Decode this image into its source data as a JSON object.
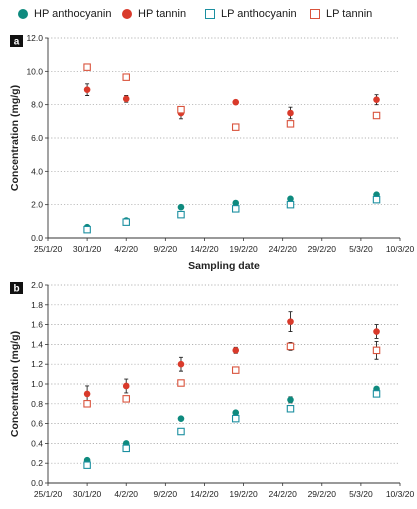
{
  "legend": [
    {
      "label": "HP anthocyanin",
      "color": "#0e8a7e",
      "shape": "circle-filled"
    },
    {
      "label": "HP tannin",
      "color": "#d93a2b",
      "shape": "circle-filled"
    },
    {
      "label": "LP anthocyanin",
      "color": "#1b8fa0",
      "shape": "square-open"
    },
    {
      "label": "LP tannin",
      "color": "#d9533c",
      "shape": "square-open"
    }
  ],
  "chart_data": [
    {
      "type": "scatter",
      "panel_label": "a",
      "ylabel": "Concentration (mg/g)",
      "xlabel": "Sampling date",
      "ylim": [
        0,
        12
      ],
      "yticks": [
        "0.0",
        "2.0",
        "4.0",
        "6.0",
        "8.0",
        "10.0",
        "12.0"
      ],
      "ytick_values": [
        0,
        2,
        4,
        6,
        8,
        10,
        12
      ],
      "xticks": [
        "25/1/20",
        "30/1/20",
        "4/2/20",
        "9/2/20",
        "14/2/20",
        "19/2/20",
        "24/2/20",
        "29/2/20",
        "5/3/20",
        "10/3/20"
      ],
      "grid": "horizontal dotted",
      "series": [
        {
          "name": "HP anthocyanin",
          "x": [
            "30/1/20",
            "4/2/20",
            "11/2/20",
            "18/2/20",
            "25/2/20",
            "7/3/20"
          ],
          "y": [
            0.65,
            1.05,
            1.85,
            2.1,
            2.35,
            2.6
          ],
          "err": [
            0.05,
            0.08,
            0.06,
            0.06,
            0.07,
            0.07
          ]
        },
        {
          "name": "HP tannin",
          "x": [
            "30/1/20",
            "4/2/20",
            "11/2/20",
            "18/2/20",
            "25/2/20",
            "7/3/20"
          ],
          "y": [
            8.9,
            8.35,
            7.5,
            8.15,
            7.5,
            8.3
          ],
          "err": [
            0.35,
            0.2,
            0.35,
            0.12,
            0.35,
            0.3
          ]
        },
        {
          "name": "LP anthocyanin",
          "x": [
            "30/1/20",
            "4/2/20",
            "11/2/20",
            "18/2/20",
            "25/2/20",
            "7/3/20"
          ],
          "y": [
            0.5,
            0.95,
            1.4,
            1.75,
            2.0,
            2.3
          ],
          "err": [
            0.05,
            0.06,
            0.06,
            0.06,
            0.06,
            0.06
          ]
        },
        {
          "name": "LP tannin",
          "x": [
            "30/1/20",
            "4/2/20",
            "11/2/20",
            "18/2/20",
            "25/2/20",
            "7/3/20"
          ],
          "y": [
            10.25,
            9.65,
            7.7,
            6.65,
            6.85,
            7.35
          ],
          "err": [
            0.1,
            0.1,
            0.15,
            0.1,
            0.15,
            0.1
          ]
        }
      ]
    },
    {
      "type": "scatter",
      "panel_label": "b",
      "ylabel": "Concentration (mg/g)",
      "xlabel": "",
      "ylim": [
        0,
        2
      ],
      "yticks": [
        "0.0",
        "0.2",
        "0.4",
        "0.6",
        "0.8",
        "1.0",
        "1.2",
        "1.4",
        "1.6",
        "1.8",
        "2.0"
      ],
      "ytick_values": [
        0,
        0.2,
        0.4,
        0.6,
        0.8,
        1.0,
        1.2,
        1.4,
        1.6,
        1.8,
        2.0
      ],
      "xticks": [
        "25/1/20",
        "30/1/20",
        "4/2/20",
        "9/2/20",
        "14/2/20",
        "19/2/20",
        "24/2/20",
        "29/2/20",
        "5/3/20",
        "10/3/20"
      ],
      "grid": "horizontal dotted",
      "series": [
        {
          "name": "HP anthocyanin",
          "x": [
            "30/1/20",
            "4/2/20",
            "11/2/20",
            "18/2/20",
            "25/2/20",
            "7/3/20"
          ],
          "y": [
            0.23,
            0.4,
            0.65,
            0.71,
            0.84,
            0.95
          ],
          "err": [
            0.01,
            0.01,
            0.01,
            0.02,
            0.03,
            0.02
          ]
        },
        {
          "name": "HP tannin",
          "x": [
            "30/1/20",
            "4/2/20",
            "11/2/20",
            "18/2/20",
            "25/2/20",
            "7/3/20"
          ],
          "y": [
            0.9,
            0.98,
            1.2,
            1.34,
            1.63,
            1.53
          ],
          "err": [
            0.08,
            0.07,
            0.07,
            0.03,
            0.1,
            0.07
          ]
        },
        {
          "name": "LP anthocyanin",
          "x": [
            "30/1/20",
            "4/2/20",
            "11/2/20",
            "18/2/20",
            "25/2/20",
            "7/3/20"
          ],
          "y": [
            0.18,
            0.35,
            0.52,
            0.65,
            0.75,
            0.9
          ],
          "err": [
            0.01,
            0.01,
            0.01,
            0.01,
            0.02,
            0.02
          ]
        },
        {
          "name": "LP tannin",
          "x": [
            "30/1/20",
            "4/2/20",
            "11/2/20",
            "18/2/20",
            "25/2/20",
            "7/3/20"
          ],
          "y": [
            0.8,
            0.85,
            1.01,
            1.14,
            1.38,
            1.34
          ],
          "err": [
            0.02,
            0.02,
            0.01,
            0.02,
            0.04,
            0.09
          ]
        }
      ]
    }
  ]
}
